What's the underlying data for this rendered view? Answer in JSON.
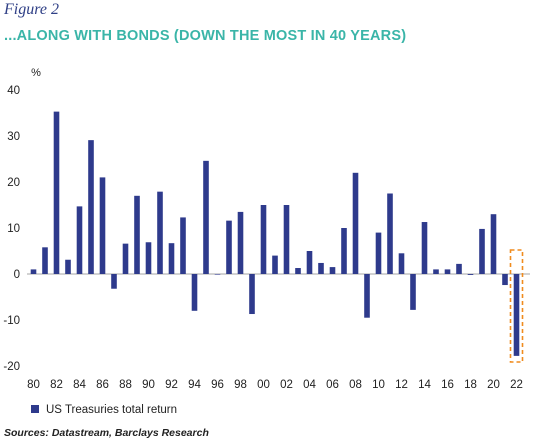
{
  "figure_label": "Figure 2",
  "title": "...ALONG WITH BONDS (DOWN THE MOST IN 40 YEARS)",
  "source": "Sources: Datastream, Barclays Research",
  "colors": {
    "bar": "#2e3a8c",
    "highlight": "#f08c1e",
    "title": "#3ab5a8",
    "figure": "#2f3f86"
  },
  "chart_data": {
    "type": "bar",
    "ylabel": "%",
    "ylim": [
      -20,
      40
    ],
    "yticks": [
      40,
      30,
      20,
      10,
      0,
      -10,
      -20
    ],
    "grid": false,
    "legend_position": "bottom-left",
    "xticks": [
      "80",
      "82",
      "84",
      "86",
      "88",
      "90",
      "92",
      "94",
      "96",
      "98",
      "00",
      "02",
      "04",
      "06",
      "08",
      "10",
      "12",
      "14",
      "16",
      "18",
      "20",
      "22"
    ],
    "categories": [
      "1980",
      "1981",
      "1982",
      "1983",
      "1984",
      "1985",
      "1986",
      "1987",
      "1988",
      "1989",
      "1990",
      "1991",
      "1992",
      "1993",
      "1994",
      "1995",
      "1996",
      "1997",
      "1998",
      "1999",
      "2000",
      "2001",
      "2002",
      "2003",
      "2004",
      "2005",
      "2006",
      "2007",
      "2008",
      "2009",
      "2010",
      "2011",
      "2012",
      "2013",
      "2014",
      "2015",
      "2016",
      "2017",
      "2018",
      "2019",
      "2020",
      "2021",
      "2022"
    ],
    "series": [
      {
        "name": "US Treasuries total return",
        "values": [
          1,
          5.8,
          35.3,
          3.1,
          14.7,
          29.1,
          21,
          -3.2,
          6.6,
          17,
          6.9,
          17.9,
          6.7,
          12.3,
          -8,
          24.6,
          -0.1,
          11.6,
          13.5,
          -8.7,
          15,
          4,
          15,
          1.3,
          5,
          2.4,
          1.5,
          10,
          22,
          -9.5,
          9,
          17.5,
          4.5,
          -7.8,
          11.3,
          1,
          1,
          2.2,
          -0.2,
          9.8,
          13,
          -2.4,
          -17.8
        ]
      }
    ],
    "highlight_category": "2022"
  }
}
